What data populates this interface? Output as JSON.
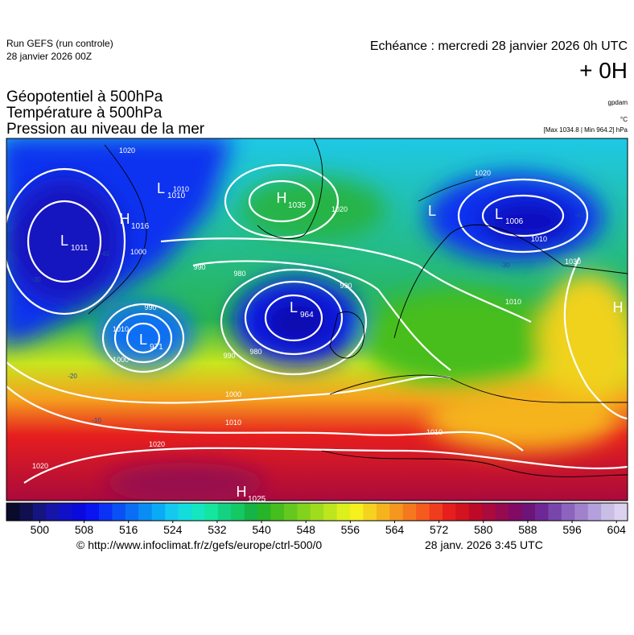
{
  "header": {
    "run": "Run GEFS (run controle)",
    "run_date": "28 janvier 2026 00Z",
    "forecast": "Echéance : mercredi 28 janvier 2026 0h UTC",
    "lead": "+ 0H",
    "fields": [
      "Géopotentiel à 500hPa",
      "Température à 500hPa",
      "Pression au niveau de la mer"
    ],
    "units": [
      "gpdam",
      "°C",
      "[Max 1034.8 | Min 964.2] hPa"
    ]
  },
  "map": {
    "centers": [
      {
        "symbol": "L",
        "value": "1011"
      },
      {
        "symbol": "H",
        "value": "1016"
      },
      {
        "symbol": "L",
        "value": "1010"
      },
      {
        "symbol": "H",
        "value": "1035"
      },
      {
        "symbol": "L",
        "value": "964"
      },
      {
        "symbol": "L",
        "value": "971"
      },
      {
        "symbol": "L"
      },
      {
        "symbol": "L",
        "value": "1006"
      },
      {
        "symbol": "H",
        "value": "1025"
      },
      {
        "symbol": "H"
      }
    ],
    "isobar_labels": [
      "1020",
      "1010",
      "1000",
      "990",
      "980",
      "990",
      "1010",
      "1000",
      "990",
      "980",
      "1020",
      "1010",
      "990",
      "1010",
      "1000",
      "1010",
      "1020",
      "1020",
      "1010",
      "1020",
      "1030"
    ],
    "temperature_labels": [
      "-40",
      "-30",
      "-20",
      "-10",
      "-40",
      "-30"
    ]
  },
  "colorbar": {
    "range": [
      494,
      606
    ],
    "ticks": [
      500,
      508,
      516,
      524,
      532,
      540,
      548,
      556,
      564,
      572,
      580,
      588,
      596,
      604
    ],
    "colors": [
      "#0a0a2a",
      "#101050",
      "#151580",
      "#1515a8",
      "#1010c8",
      "#0a0adc",
      "#0a14f0",
      "#0a32f5",
      "#0a50f5",
      "#0a6ef5",
      "#0a8cf5",
      "#0aaaf5",
      "#14c8f0",
      "#14dcdc",
      "#14e6c0",
      "#14e6a0",
      "#14d282",
      "#14c864",
      "#14b446",
      "#28b428",
      "#46be1e",
      "#64c81e",
      "#82d21e",
      "#a0dc1e",
      "#bee61e",
      "#dcf01e",
      "#f5f01e",
      "#f5d21e",
      "#f5b41e",
      "#f5961e",
      "#f5781e",
      "#f55a1e",
      "#f03c1e",
      "#e61e1e",
      "#d2141e",
      "#be0a28",
      "#aa0a3c",
      "#960a50",
      "#820a64",
      "#6e1478",
      "#6e2896",
      "#7846aa",
      "#8c64be",
      "#a082cc",
      "#b4a0dc",
      "#c8bee6",
      "#dcd2f0"
    ]
  },
  "footer": {
    "source": "© http://www.infoclimat.fr/z/gefs/europe/ctrl-500/0",
    "generated": "28 janv. 2026  3:45 UTC"
  }
}
